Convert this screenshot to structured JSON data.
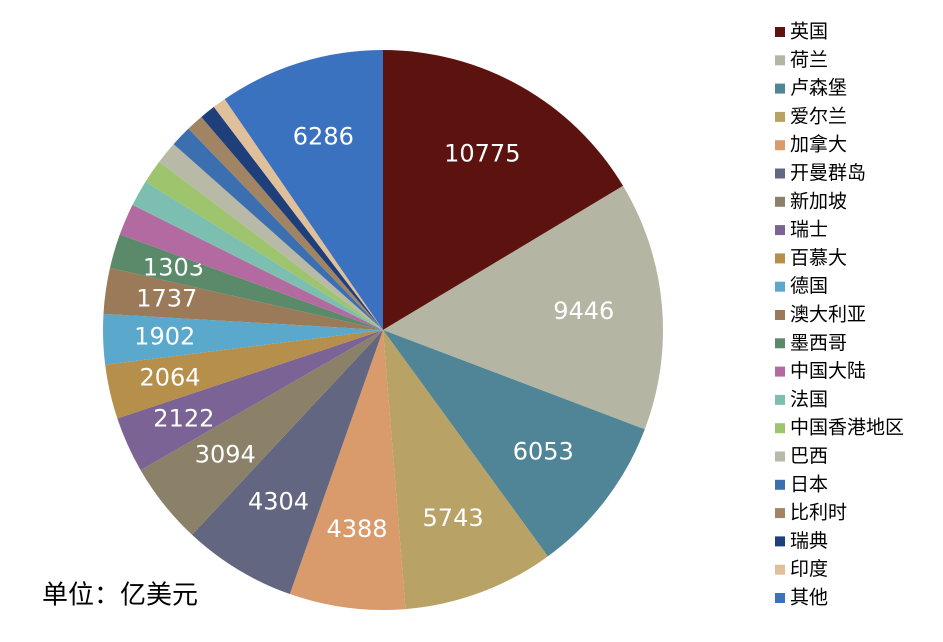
{
  "chart_data": {
    "type": "pie",
    "categories": [
      "英国",
      "荷兰",
      "卢森堡",
      "爱尔兰",
      "加拿大",
      "开曼群岛",
      "新加坡",
      "瑞士",
      "百慕大",
      "德国",
      "澳大利亚",
      "墨西哥",
      "中国大陆",
      "法国",
      "中国香港地区",
      "巴西",
      "日本",
      "比利时",
      "瑞典",
      "印度",
      "其他"
    ],
    "values": [
      10775,
      9446,
      6053,
      5743,
      4388,
      4304,
      3094,
      2122,
      2064,
      1902,
      1737,
      1303,
      1200,
      1000,
      900,
      850,
      800,
      650,
      600,
      500,
      6286
    ],
    "value_labels": [
      "10775",
      "9446",
      "6053",
      "5743",
      "4388",
      "4304",
      "3094",
      "2122",
      "2064",
      "1902",
      "1737",
      "1303",
      null,
      null,
      null,
      null,
      null,
      null,
      null,
      null,
      "6286"
    ],
    "colors": [
      "#5c1310",
      "#b5b5a3",
      "#4f8596",
      "#b9a265",
      "#d99a6c",
      "#636680",
      "#8b8168",
      "#7b6396",
      "#b68f4b",
      "#5aa8cb",
      "#9b7a5a",
      "#5a8a6a",
      "#b26aa0",
      "#7cbfb0",
      "#9ec46e",
      "#b9b9a8",
      "#3b6fb0",
      "#a08464",
      "#1f3f7a",
      "#e0c09a",
      "#3a72bf"
    ],
    "legend": "right",
    "note": "单位：亿美元"
  }
}
